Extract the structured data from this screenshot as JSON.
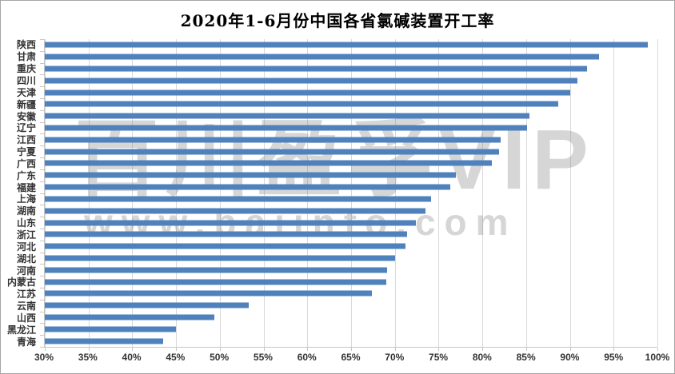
{
  "title": "2020年1-6月份中国各省氯碱装置开工率",
  "watermark": {
    "line1": "百川盈孚VIP",
    "line2": "www.baiinfo.com"
  },
  "colors": {
    "bar": "#4f81bd",
    "gridline": "#d9d9d9",
    "axis_line": "#c6c6c6",
    "axis_text": "#333333",
    "title_text": "#000000",
    "watermark": "rgba(130,130,130,0.33)"
  },
  "chart_data": {
    "type": "bar",
    "orientation": "horizontal",
    "title": "2020年1-6月份中国各省氯碱装置开工率",
    "unit": "%",
    "categories": [
      "陕西",
      "甘肃",
      "重庆",
      "四川",
      "天津",
      "新疆",
      "安徽",
      "辽宁",
      "江西",
      "宁夏",
      "广西",
      "广东",
      "福建",
      "上海",
      "湖南",
      "山东",
      "浙江",
      "河北",
      "湖北",
      "河南",
      "内蒙古",
      "江苏",
      "云南",
      "山西",
      "黑龙江",
      "青海"
    ],
    "values": [
      98.9,
      93.3,
      92.0,
      90.9,
      90.0,
      88.7,
      85.4,
      85.1,
      82.1,
      81.9,
      81.1,
      77.0,
      76.3,
      74.1,
      73.5,
      72.4,
      71.4,
      71.2,
      70.0,
      69.1,
      69.0,
      67.4,
      53.3,
      49.4,
      45.0,
      43.5
    ],
    "xlim": [
      30,
      100
    ],
    "x_tick_step": 5,
    "x_tick_labels": [
      "30%",
      "35%",
      "40%",
      "45%",
      "50%",
      "55%",
      "60%",
      "65%",
      "70%",
      "75%",
      "80%",
      "85%",
      "90%",
      "95%",
      "100%"
    ],
    "grid": true,
    "legend": false,
    "xlabel": "",
    "ylabel": ""
  }
}
